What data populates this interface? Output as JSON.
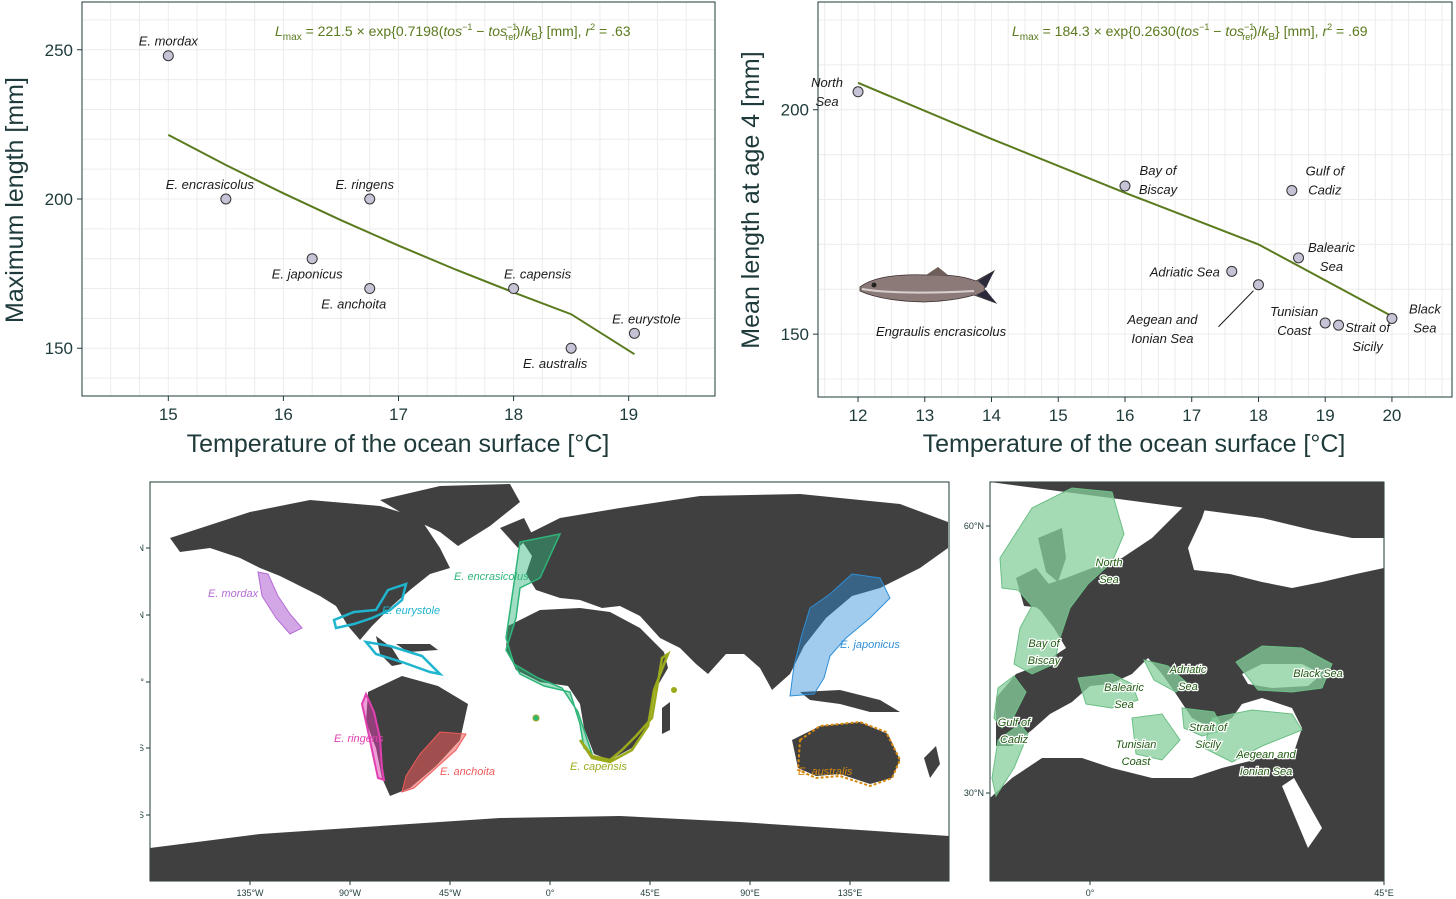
{
  "chart_data": [
    {
      "type": "scatter",
      "panel": "top-left",
      "formula": "L_max = 221.5 × exp{0.7198(tos⁻¹ − tos_ref⁻¹)/k_B}   [mm], r² = .63",
      "formula_parts": {
        "L": "L",
        "sub": "max",
        "coef": " = 221.5 × exp{0.7198(",
        "tos1": "tos",
        "minus": " − ",
        "tos2": "tos",
        "ref": "ref",
        "close": ")/",
        "kB": "k",
        "kBsub": "B",
        "unit": "}   [mm], ",
        "r": "r",
        "r2val": " = .63"
      },
      "xlabel": "Temperature of the ocean surface [°C]",
      "ylabel": "Maximum length [mm]",
      "xlim": [
        14.25,
        19.75
      ],
      "ylim": [
        134,
        266
      ],
      "xticks": [
        "15",
        "16",
        "17",
        "18",
        "19"
      ],
      "yticks": [
        "150",
        "200",
        "250"
      ],
      "grid": true,
      "points": [
        {
          "x": 15.0,
          "y": 248,
          "label": "E. mordax"
        },
        {
          "x": 15.5,
          "y": 200,
          "label": "E. encrasicolus"
        },
        {
          "x": 16.25,
          "y": 180,
          "label": "E. japonicus"
        },
        {
          "x": 16.75,
          "y": 200,
          "label": "E. ringens"
        },
        {
          "x": 16.75,
          "y": 170,
          "label": "E. anchoita"
        },
        {
          "x": 18.0,
          "y": 170,
          "label": "E. capensis"
        },
        {
          "x": 18.5,
          "y": 150,
          "label": "E. australis"
        },
        {
          "x": 19.05,
          "y": 155,
          "label": "E. eurystole"
        }
      ],
      "fit_line": {
        "x": [
          15.0,
          15.5,
          16.0,
          16.5,
          17.0,
          17.5,
          18.0,
          18.5,
          19.05
        ],
        "y": [
          221.5,
          211.4,
          201.9,
          192.9,
          184.4,
          176.3,
          168.7,
          161.4,
          148.0
        ],
        "color": "#5a7a1e"
      }
    },
    {
      "type": "scatter",
      "panel": "top-right",
      "formula_parts": {
        "L": "L",
        "sub": "max",
        "coef": " = 184.3 × exp{0.2630(",
        "tos1": "tos",
        "minus": " − ",
        "tos2": "tos",
        "ref": "ref",
        "close": ")/",
        "kB": "k",
        "kBsub": "B",
        "unit": "}   [mm], ",
        "r": "r",
        "r2val": " = .69"
      },
      "xlabel": "Temperature of the ocean surface [°C]",
      "ylabel": "Mean length at age 4 [mm]",
      "xlim": [
        11.4,
        20.9
      ],
      "ylim": [
        136,
        224
      ],
      "xticks": [
        "12",
        "13",
        "14",
        "15",
        "16",
        "17",
        "18",
        "19",
        "20"
      ],
      "yticks": [
        "150",
        "200"
      ],
      "grid": true,
      "points": [
        {
          "x": 12.0,
          "y": 204,
          "label": "North Sea"
        },
        {
          "x": 16.0,
          "y": 183,
          "label": "Bay of Biscay"
        },
        {
          "x": 18.5,
          "y": 182,
          "label": "Gulf of Cadiz"
        },
        {
          "x": 18.6,
          "y": 167,
          "label": "Balearic Sea"
        },
        {
          "x": 17.6,
          "y": 164,
          "label": "Adriatic Sea"
        },
        {
          "x": 18.0,
          "y": 161,
          "label": "Aegean and Ionian Sea"
        },
        {
          "x": 19.0,
          "y": 152.5,
          "label": "Tunisian Coast"
        },
        {
          "x": 19.2,
          "y": 152,
          "label": "Strait of Sicily"
        },
        {
          "x": 20.0,
          "y": 153.5,
          "label": "Black Sea"
        }
      ],
      "fit_line": {
        "x": [
          12.0,
          14.0,
          16.0,
          18.0,
          20.0
        ],
        "y": [
          206,
          193.5,
          181.5,
          170,
          154
        ],
        "color": "#5a7a1e"
      },
      "annotation": "Engraulis encrasicolus"
    }
  ],
  "labels": {
    "top_left": {
      "E. mordax": "E. mordax",
      "E. encrasicolus": "E. encrasicolus",
      "E. japonicus": "E. japonicus",
      "E. ringens": "E. ringens",
      "E. anchoita": "E. anchoita",
      "E. capensis": "E. capensis",
      "E. australis": "E. australis",
      "E. eurystole": "E. eurystole"
    }
  },
  "world_map": {
    "lat_ticks": [
      "60°N",
      "30°N",
      "0°",
      "30°S",
      "60°S"
    ],
    "lon_ticks": [
      "135°W",
      "90°W",
      "45°W",
      "0°",
      "45°E",
      "90°E",
      "135°E"
    ],
    "species": [
      {
        "label": "E. mordax",
        "color": "#b56bd6"
      },
      {
        "label": "E. eurystole",
        "color": "#1fb5cf"
      },
      {
        "label": "E. encrasicolus",
        "color": "#2fb57a"
      },
      {
        "label": "E. japonicus",
        "color": "#2f8fd6"
      },
      {
        "label": "E. ringens",
        "color": "#e040b0"
      },
      {
        "label": "E. anchoita",
        "color": "#f05a5a"
      },
      {
        "label": "E. capensis",
        "color": "#9aaa1a"
      },
      {
        "label": "E. australis",
        "color": "#d68a10"
      }
    ]
  },
  "europe_map": {
    "lat_ticks": [
      "60°N",
      "30°N"
    ],
    "lon_ticks": [
      "0°",
      "45°E"
    ],
    "regions": {
      "north_sea_1": "North",
      "north_sea_2": "Sea",
      "biscay_1": "Bay of",
      "biscay_2": "Biscay",
      "cadiz_1": "Gulf of",
      "cadiz_2": "Cadiz",
      "balearic_1": "Balearic",
      "balearic_2": "Sea",
      "adriatic_1": "Adriatic",
      "adriatic_2": "Sea",
      "black_sea": "Black Sea",
      "tunisian_1": "Tunisian",
      "tunisian_2": "Coast",
      "sicily_1": "Strait of",
      "sicily_2": "Sicily",
      "aegean_1": "Aegean and",
      "aegean_2": "Ionian Sea"
    }
  }
}
